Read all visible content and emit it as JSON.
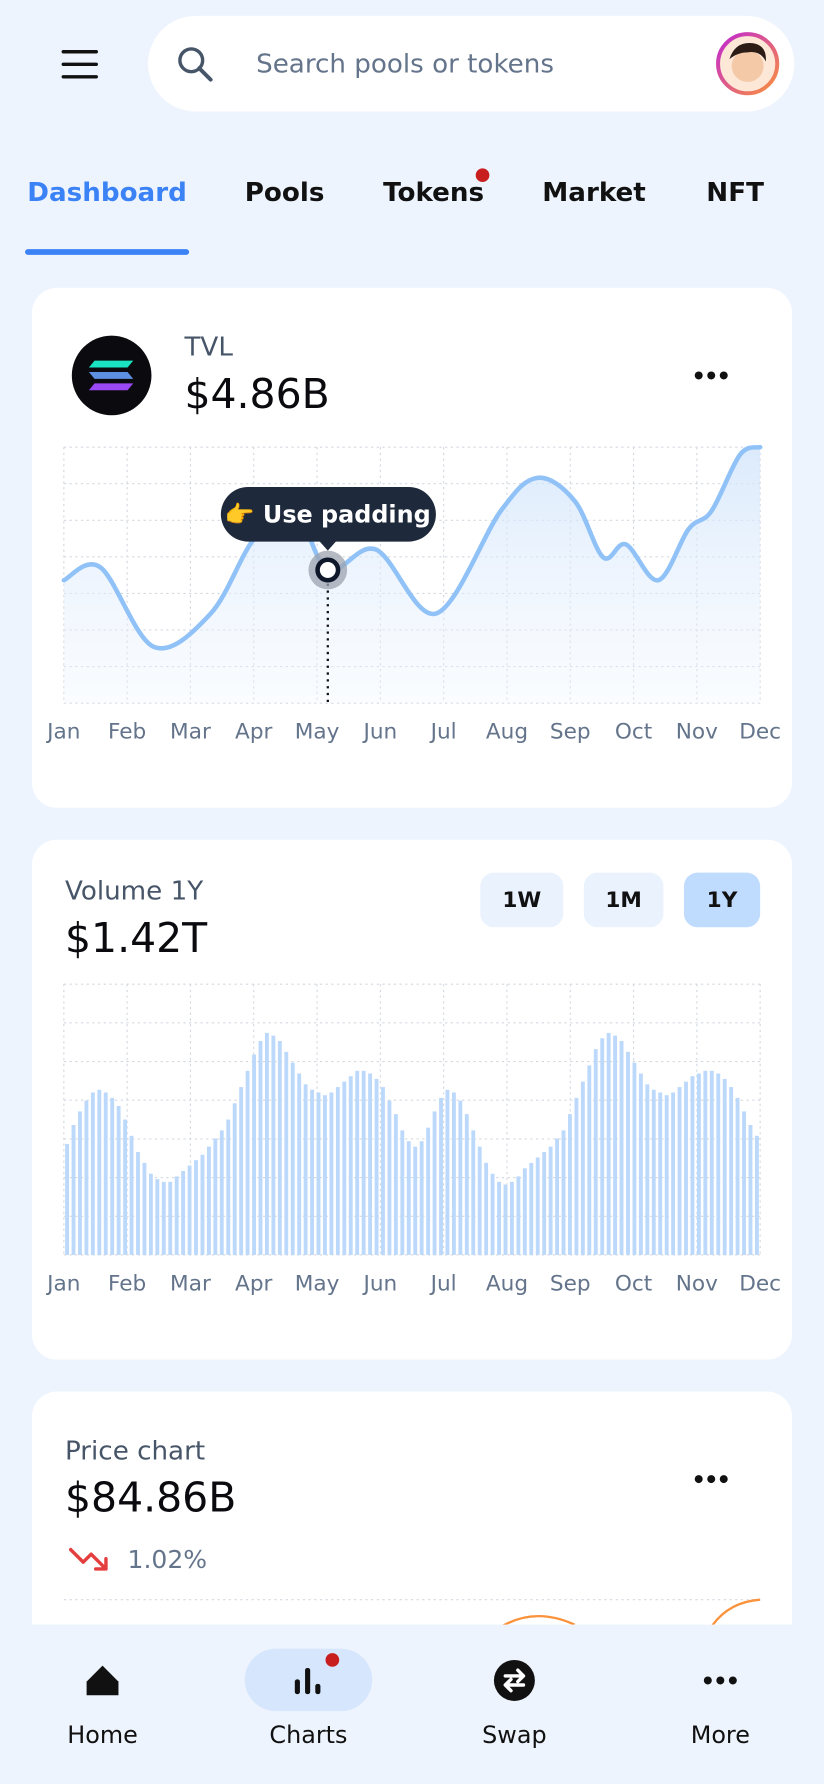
{
  "search": {
    "placeholder": "Search pools or tokens"
  },
  "tabs": {
    "items": [
      "Dashboard",
      "Pools",
      "Tokens",
      "Market",
      "NFT"
    ],
    "active": 0
  },
  "tvl": {
    "label": "TVL",
    "value": "$4.86B",
    "tooltip": "👉 Use padding",
    "chart": {
      "type": "line",
      "categories": [
        "Jan",
        "Feb",
        "Mar",
        "Apr",
        "May",
        "Jun",
        "Jul",
        "Aug",
        "Sep",
        "Oct",
        "Nov",
        "Dec"
      ],
      "x": [
        0,
        0.58,
        1.42,
        2.32,
        3.0,
        3.63,
        4.17,
        4.93,
        5.88,
        6.9,
        7.48,
        8.07,
        8.52,
        8.88,
        9.39,
        9.87,
        10.23,
        10.68,
        11
      ],
      "values": [
        48,
        53,
        22,
        35,
        64,
        76,
        52,
        60,
        35,
        75,
        88,
        79,
        57,
        62,
        48,
        68,
        75,
        97,
        100
      ],
      "xlim": [
        0,
        11
      ],
      "ylim": [
        0,
        100
      ],
      "highlight": 6,
      "color": "#90c2f7"
    }
  },
  "volume": {
    "label": "Volume 1Y",
    "value": "$1.42T",
    "ranges": {
      "items": [
        "1W",
        "1M",
        "1Y"
      ],
      "selected": 2
    },
    "chart": {
      "type": "bar",
      "categories": [
        "Jan",
        "Feb",
        "Mar",
        "Apr",
        "May",
        "Jun",
        "Jul",
        "Aug",
        "Sep",
        "Oct",
        "Nov",
        "Dec"
      ],
      "values": [
        41,
        48,
        53,
        57,
        60,
        61,
        60,
        58,
        55,
        50,
        44,
        38,
        34,
        30,
        28,
        27,
        27,
        29,
        31,
        33,
        35,
        37,
        40,
        43,
        46,
        50,
        56,
        62,
        68,
        74,
        79,
        82,
        81,
        79,
        75,
        71,
        67,
        63,
        61,
        60,
        59,
        60,
        62,
        64,
        66,
        68,
        68,
        67,
        65,
        62,
        57,
        52,
        46,
        42,
        40,
        42,
        47,
        53,
        58,
        61,
        60,
        57,
        52,
        46,
        40,
        34,
        30,
        27,
        26,
        27,
        29,
        32,
        34,
        36,
        38,
        40,
        43,
        46,
        52,
        58,
        64,
        70,
        76,
        80,
        82,
        81,
        79,
        75,
        71,
        67,
        63,
        61,
        60,
        59,
        60,
        62,
        64,
        66,
        67,
        68,
        68,
        67,
        65,
        62,
        58,
        53,
        48,
        44
      ],
      "ylim": [
        0,
        100
      ],
      "color": "#bcd9fb"
    }
  },
  "price": {
    "label": "Price chart",
    "value": "$84.86B",
    "change": "1.02%"
  },
  "nav": {
    "items": [
      "Home",
      "Charts",
      "Swap",
      "More"
    ],
    "active": 1
  }
}
